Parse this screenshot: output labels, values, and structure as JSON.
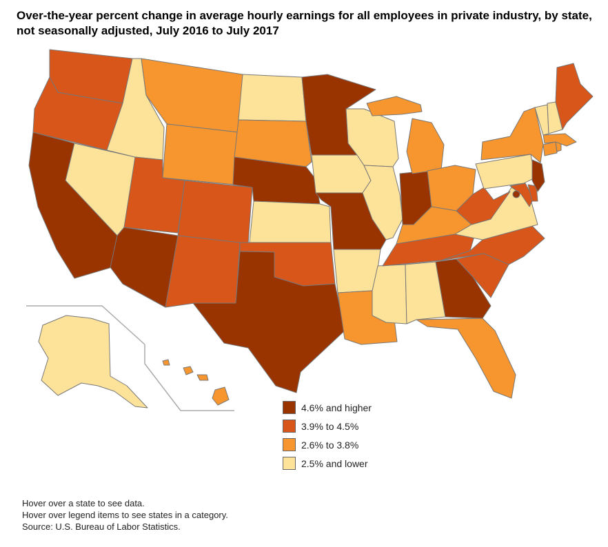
{
  "title": "Over-the-year percent change in average hourly earnings for all employees in private industry, by state, not seasonally adjusted, July 2016 to July 2017",
  "colors": {
    "cat1": "#993300",
    "cat2": "#d9561b",
    "cat3": "#f7962e",
    "cat4": "#fde29a",
    "border": "#777777"
  },
  "legend": [
    {
      "label": "4.6% and higher",
      "color": "#993300"
    },
    {
      "label": "3.9% to 4.5%",
      "color": "#d9561b"
    },
    {
      "label": "2.6% to 3.8%",
      "color": "#f7962e"
    },
    {
      "label": "2.5% and lower",
      "color": "#fde29a"
    }
  ],
  "notes": {
    "line1": "Hover over a state to see data.",
    "line2": "Hover over legend items to see states in a category.",
    "source": "Source: U.S. Bureau of Labor Statistics."
  },
  "chart_data": {
    "type": "choropleth",
    "categories": {
      "4.6% and higher": [
        "CA",
        "AZ",
        "TX",
        "NE",
        "MN",
        "MO",
        "IN",
        "GA",
        "NJ",
        "DC"
      ],
      "3.9% to 4.5%": [
        "WA",
        "OR",
        "UT",
        "CO",
        "NM",
        "OK",
        "TN",
        "NC",
        "SC",
        "WV",
        "MD",
        "DE",
        "ME"
      ],
      "2.6% to 3.8%": [
        "MT",
        "WY",
        "SD",
        "OH",
        "KY",
        "MI",
        "LA",
        "FL",
        "NY",
        "MA",
        "CT",
        "RI",
        "HI"
      ],
      "2.5% and lower": [
        "ID",
        "NV",
        "ND",
        "KS",
        "IA",
        "WI",
        "IL",
        "AR",
        "MS",
        "AL",
        "PA",
        "VA",
        "VT",
        "NH",
        "AK"
      ]
    }
  }
}
